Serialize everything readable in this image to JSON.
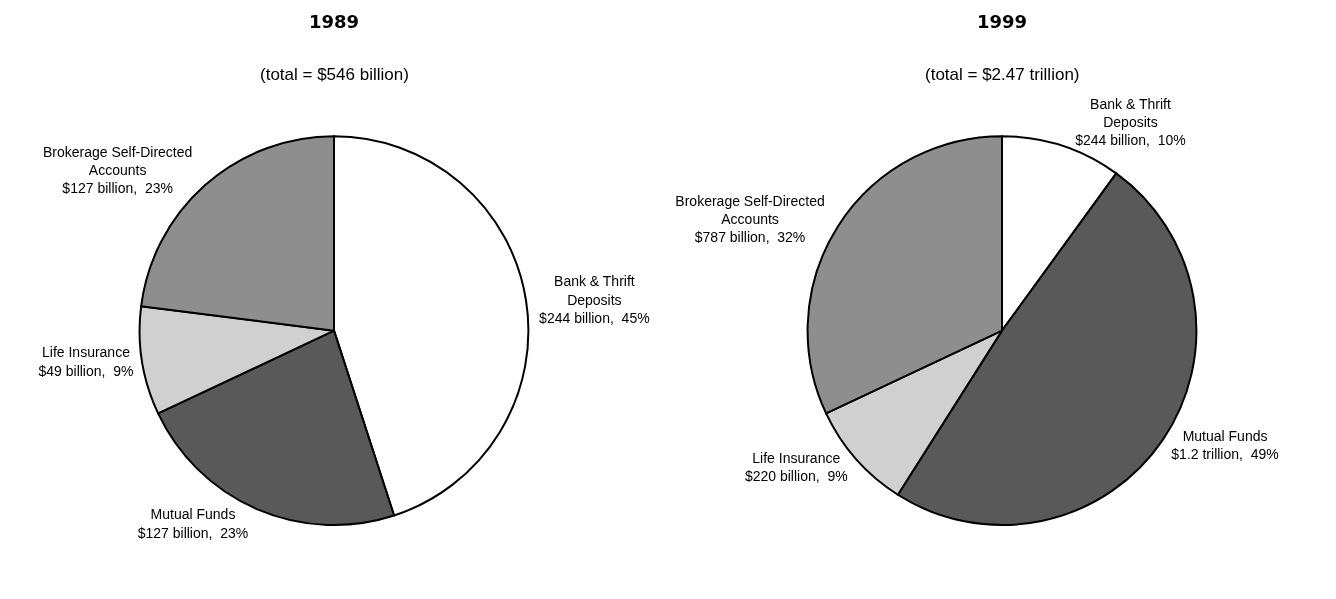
{
  "chart_data": [
    {
      "type": "pie",
      "title": "1989",
      "subtitle": "(total = $546 billion)",
      "categories": [
        "Bank & Thrift Deposits",
        "Mutual Funds",
        "Life Insurance",
        "Brokerage Self-Directed Accounts"
      ],
      "values": [
        45,
        23,
        9,
        23
      ],
      "value_labels": [
        "$244 billion,  45%",
        "$127 billion,  23%",
        "$49 billion,  9%",
        "$127 billion,  23%"
      ],
      "colors": [
        "#ffffff",
        "#595959",
        "#d0d0d0",
        "#8e8e8e"
      ]
    },
    {
      "type": "pie",
      "title": "1999",
      "subtitle": "(total = $2.47 trillion)",
      "categories": [
        "Bank & Thrift Deposits",
        "Mutual Funds",
        "Life Insurance",
        "Brokerage Self-Directed Accounts"
      ],
      "values": [
        10,
        49,
        9,
        32
      ],
      "value_labels": [
        "$244 billion,  10%",
        "$1.2 trillion,  49%",
        "$220 billion,  9%",
        "$787 billion,  32%"
      ],
      "colors": [
        "#ffffff",
        "#595959",
        "#d0d0d0",
        "#8e8e8e"
      ]
    }
  ]
}
